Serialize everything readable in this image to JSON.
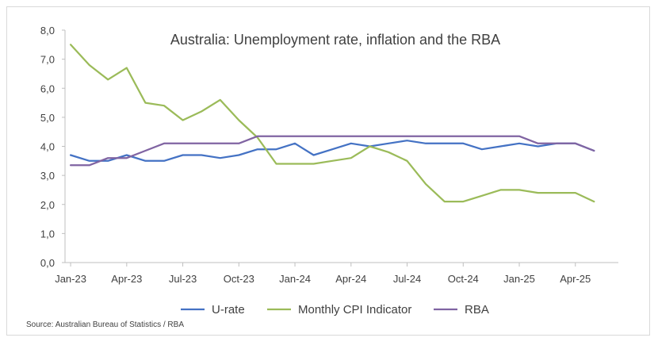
{
  "chart_data": {
    "type": "line",
    "title": "Australia: Unemployment rate, inflation and the RBA",
    "source": "Source: Australian Bureau of Statistics / RBA",
    "xlabel": "",
    "ylabel": "",
    "ylim": [
      0,
      8
    ],
    "y_ticks": [
      "0,0",
      "1,0",
      "2,0",
      "3,0",
      "4,0",
      "5,0",
      "6,0",
      "7,0",
      "8,0"
    ],
    "grid": false,
    "legend_position": "bottom",
    "x": [
      "Jan-23",
      "Feb-23",
      "Mar-23",
      "Apr-23",
      "May-23",
      "Jun-23",
      "Jul-23",
      "Aug-23",
      "Sep-23",
      "Oct-23",
      "Nov-23",
      "Dec-23",
      "Jan-24",
      "Feb-24",
      "Mar-24",
      "Apr-24",
      "May-24",
      "Jun-24",
      "Jul-24",
      "Aug-24",
      "Sep-24",
      "Oct-24",
      "Nov-24",
      "Dec-24",
      "Jan-25",
      "Feb-25",
      "Mar-25",
      "Apr-25",
      "May-25",
      "Jun-25"
    ],
    "x_tick_labels": [
      "Jan-23",
      "Apr-23",
      "Jul-23",
      "Oct-23",
      "Jan-24",
      "Apr-24",
      "Jul-24",
      "Oct-24",
      "Jan-25",
      "Apr-25"
    ],
    "series": [
      {
        "name": "U-rate",
        "color": "#4472c4",
        "values": [
          3.7,
          3.5,
          3.5,
          3.7,
          3.5,
          3.5,
          3.7,
          3.7,
          3.6,
          3.7,
          3.9,
          3.9,
          4.1,
          3.7,
          3.9,
          4.1,
          4.0,
          4.1,
          4.2,
          4.1,
          4.1,
          4.1,
          3.9,
          4.0,
          4.1,
          4.0,
          4.1,
          4.1,
          3.85,
          null
        ]
      },
      {
        "name": "Monthly CPI Indicator",
        "color": "#9bbb59",
        "values": [
          7.5,
          6.8,
          6.3,
          6.7,
          5.5,
          5.4,
          4.9,
          5.2,
          5.6,
          4.9,
          4.3,
          3.4,
          3.4,
          3.4,
          3.5,
          3.6,
          4.0,
          3.8,
          3.5,
          2.7,
          2.1,
          2.1,
          2.3,
          2.5,
          2.5,
          2.4,
          2.4,
          2.4,
          2.1,
          null
        ]
      },
      {
        "name": "RBA",
        "color": "#8064a2",
        "values": [
          3.35,
          3.35,
          3.6,
          3.6,
          3.85,
          4.1,
          4.1,
          4.1,
          4.1,
          4.1,
          4.35,
          4.35,
          4.35,
          4.35,
          4.35,
          4.35,
          4.35,
          4.35,
          4.35,
          4.35,
          4.35,
          4.35,
          4.35,
          4.35,
          4.35,
          4.1,
          4.1,
          4.1,
          3.85,
          null
        ]
      }
    ]
  }
}
